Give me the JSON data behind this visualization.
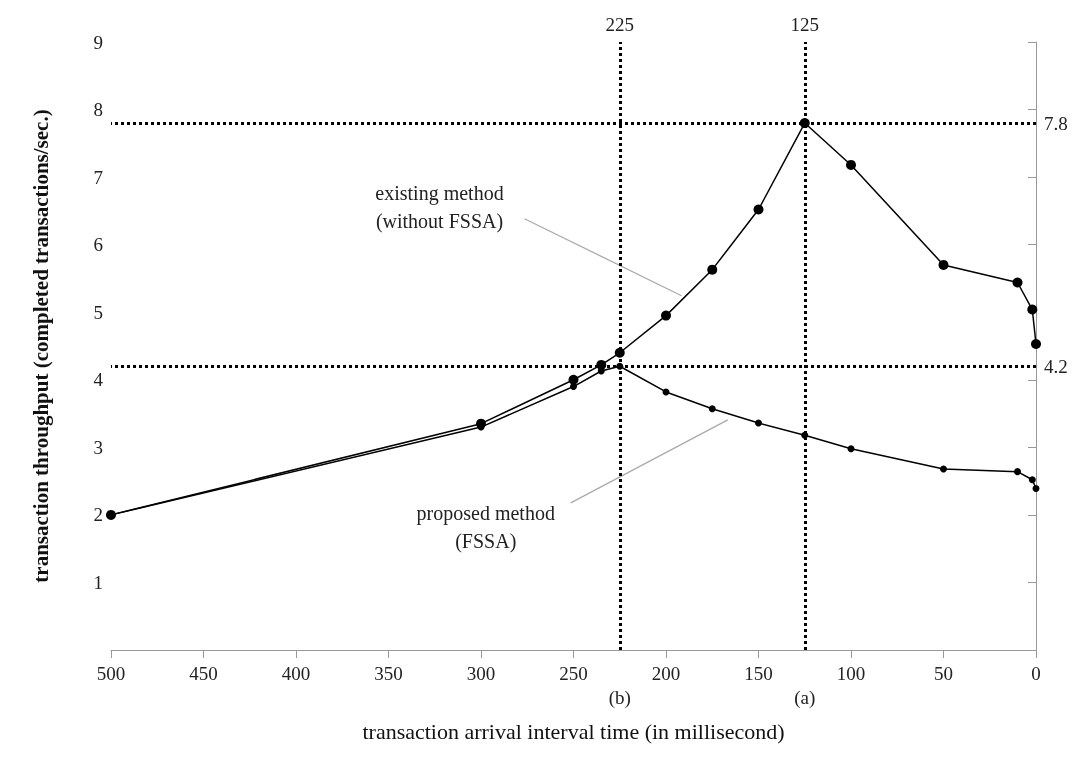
{
  "chart_data": {
    "type": "line",
    "xlabel": "transaction arrival interval time (in millisecond)",
    "ylabel": "transaction throughput (completed transactions/sec.)",
    "xlim": [
      500,
      0
    ],
    "xticks": [
      500,
      450,
      400,
      350,
      300,
      250,
      200,
      150,
      100,
      50,
      0
    ],
    "ylim": [
      0,
      9
    ],
    "yticks": [
      {
        "value": 0,
        "label": null
      },
      1,
      2,
      3,
      4,
      5,
      6,
      7,
      8,
      9
    ],
    "series": [
      {
        "color": "#000000",
        "x": [
          500,
          300,
          250,
          235,
          225,
          200,
          175,
          150,
          125,
          100,
          50,
          10,
          2,
          0
        ],
        "values": [
          2.0,
          3.35,
          4.0,
          4.22,
          4.4,
          4.95,
          5.63,
          6.52,
          7.8,
          7.18,
          5.7,
          5.44,
          5.04,
          4.53
        ]
      },
      {
        "color": "#000000",
        "x": [
          500,
          300,
          250,
          235,
          225,
          200,
          175,
          150,
          125,
          100,
          50,
          10,
          2,
          0
        ],
        "values": [
          2.0,
          3.3,
          3.9,
          4.13,
          4.2,
          3.82,
          3.57,
          3.36,
          3.18,
          2.98,
          2.68,
          2.64,
          2.52,
          2.39
        ]
      }
    ],
    "ref_lines": [
      {
        "axis": "x",
        "value": 225,
        "label": "225",
        "line_style": "dotted",
        "color": "#000000"
      },
      {
        "axis": "x",
        "value": 125,
        "label": "125",
        "line_style": "dotted",
        "color": "#000000"
      },
      {
        "axis": "y",
        "value": 7.8,
        "label": "7.8",
        "line_style": "dotted",
        "color": "#000000"
      },
      {
        "axis": "y",
        "value": 4.2,
        "label": "4.2",
        "line_style": "dotted",
        "color": "#000000"
      }
    ],
    "annotations": [
      {
        "text": "(b)",
        "x": 225,
        "y": 0
      },
      {
        "text": "(a)",
        "x": 125,
        "y": 0
      },
      {
        "text": "existing method\n(without FSSA)",
        "x": 190,
        "y": 5.2
      },
      {
        "text": "proposed method\n(FSSA)",
        "x": 165,
        "y": 3.45
      }
    ],
    "marker": "circle",
    "line_style": "solid",
    "grid": false
  }
}
